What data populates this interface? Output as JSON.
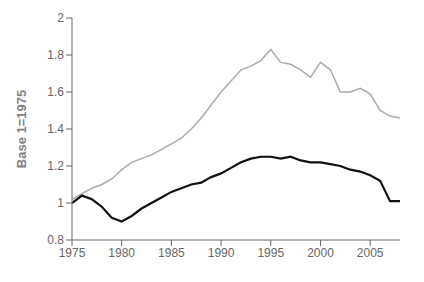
{
  "chart_data": {
    "type": "line",
    "ylabel": "Base 1=1975",
    "x": [
      1975,
      1976,
      1977,
      1978,
      1979,
      1980,
      1981,
      1982,
      1983,
      1984,
      1985,
      1986,
      1987,
      1988,
      1989,
      1990,
      1991,
      1992,
      1993,
      1994,
      1995,
      1996,
      1997,
      1998,
      1999,
      2000,
      2001,
      2002,
      2003,
      2004,
      2005,
      2006,
      2007,
      2008
    ],
    "series": [
      {
        "color": "#aaaaaa",
        "values": [
          1.02,
          1.05,
          1.08,
          1.1,
          1.13,
          1.18,
          1.22,
          1.24,
          1.26,
          1.29,
          1.32,
          1.35,
          1.4,
          1.46,
          1.53,
          1.6,
          1.66,
          1.72,
          1.74,
          1.77,
          1.83,
          1.76,
          1.75,
          1.72,
          1.68,
          1.76,
          1.72,
          1.6,
          1.6,
          1.62,
          1.59,
          1.5,
          1.47,
          1.46
        ]
      },
      {
        "color": "#111111",
        "values": [
          1.0,
          1.04,
          1.02,
          0.98,
          0.92,
          0.9,
          0.93,
          0.97,
          1.0,
          1.03,
          1.06,
          1.08,
          1.1,
          1.11,
          1.14,
          1.16,
          1.19,
          1.22,
          1.24,
          1.25,
          1.25,
          1.24,
          1.25,
          1.23,
          1.22,
          1.22,
          1.21,
          1.2,
          1.18,
          1.17,
          1.15,
          1.12,
          1.01,
          1.01
        ]
      }
    ],
    "xlim": [
      1975,
      2008
    ],
    "xticks": [
      1975,
      1980,
      1985,
      1990,
      1995,
      2000,
      2005
    ],
    "ylim": [
      0.8,
      2.0
    ],
    "yticks": [
      0.8,
      1,
      1.2,
      1.4,
      1.6,
      1.8,
      2
    ],
    "grid": false
  }
}
